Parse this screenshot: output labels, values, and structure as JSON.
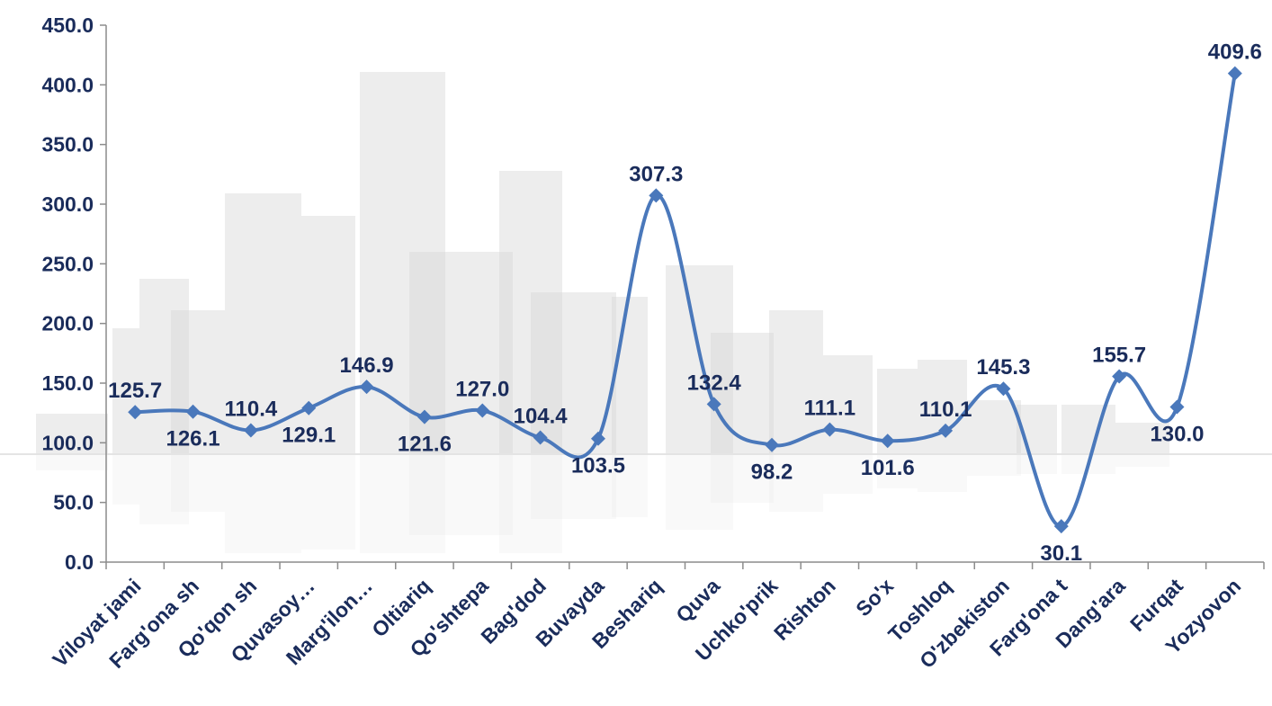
{
  "chart_data": {
    "type": "line",
    "categories": [
      "Viloyat jami",
      "Farg'ona sh",
      "Qo'qon sh",
      "Quvasoy…",
      "Marg'ilon…",
      "Oltiariq",
      "Qo'shtepa",
      "Bag'dod",
      "Buvayda",
      "Beshariq",
      "Quva",
      "Uchko'prik",
      "Rishton",
      "So'x",
      "Toshloq",
      "O'zbekiston",
      "Farg'ona t",
      "Dang'ara",
      "Furqat",
      "Yozyovon"
    ],
    "series": [
      {
        "values": [
          125.7,
          126.1,
          110.4,
          129.1,
          146.9,
          121.6,
          127.0,
          104.4,
          103.5,
          307.3,
          132.4,
          98.2,
          111.1,
          101.6,
          110.1,
          145.3,
          30.1,
          155.7,
          130.0,
          409.6
        ]
      }
    ],
    "data_labels": [
      "125.7",
      "126.1",
      "110.4",
      "129.1",
      "146.9",
      "121.6",
      "127.0",
      "104.4",
      "103.5",
      "307.3",
      "132.4",
      "98.2",
      "111.1",
      "101.6",
      "110.1",
      "145.3",
      "30.1",
      "155.7",
      "130.0",
      "409.6"
    ],
    "label_position": [
      "above",
      "below",
      "above",
      "below",
      "above",
      "below",
      "above",
      "above",
      "below",
      "above",
      "above",
      "below",
      "above",
      "below",
      "above",
      "above",
      "below",
      "above",
      "below",
      "above"
    ],
    "y_tick_labels": [
      "0.0",
      "50.0",
      "100.0",
      "150.0",
      "200.0",
      "250.0",
      "300.0",
      "350.0",
      "400.0",
      "450.0"
    ],
    "y_ticks": [
      0,
      50,
      100,
      150,
      200,
      250,
      300,
      350,
      400,
      450
    ],
    "ylim": [
      0,
      450
    ],
    "grid": false,
    "smooth": true,
    "marker": "diamond",
    "colors": {
      "line": "#4a78bb",
      "marker": "#4a78bb",
      "text": "#1a2c5b",
      "axis": "#8c8c8c",
      "background_art": "#d6d6d6"
    }
  }
}
